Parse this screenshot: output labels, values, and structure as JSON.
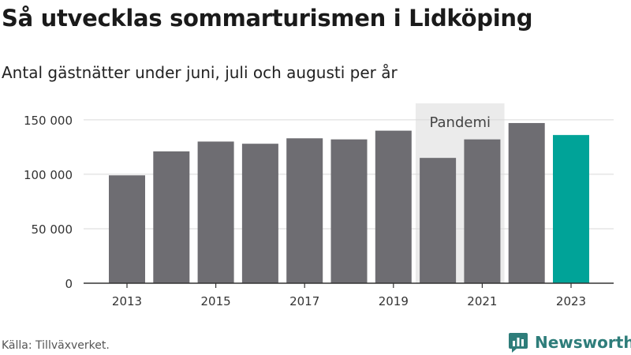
{
  "title": "Så utvecklas sommarturismen i Lidköping",
  "subtitle": "Antal gästnätter under juni, juli och augusti per år",
  "source": "Källa: Tillväxverket.",
  "brand": "Newsworthy",
  "colors": {
    "bar": "#6e6d72",
    "highlight": "#00a398",
    "shade": "#ebebeb",
    "grid": "#d9d9d9",
    "axis": "#333333",
    "brand": "#2e7d7a"
  },
  "chart_data": {
    "type": "bar",
    "title": "Så utvecklas sommarturismen i Lidköping",
    "subtitle": "Antal gästnätter under juni, juli och augusti per år",
    "categories": [
      "2013",
      "2014",
      "2015",
      "2016",
      "2017",
      "2018",
      "2019",
      "2020",
      "2021",
      "2022",
      "2023"
    ],
    "values": [
      99000,
      121000,
      130000,
      128000,
      133000,
      132000,
      140000,
      115000,
      132000,
      147000,
      136000
    ],
    "highlight_category": "2023",
    "x_tick_labels": [
      "2013",
      "2015",
      "2017",
      "2019",
      "2021",
      "2023"
    ],
    "y_ticks": [
      0,
      50000,
      100000,
      150000
    ],
    "y_tick_labels": [
      "0",
      "50 000",
      "100 000",
      "150 000"
    ],
    "ylim": [
      0,
      160000
    ],
    "grid": true,
    "legend": "none",
    "annotation": {
      "text": "Pandemi",
      "categories": [
        "2020",
        "2021"
      ]
    }
  }
}
